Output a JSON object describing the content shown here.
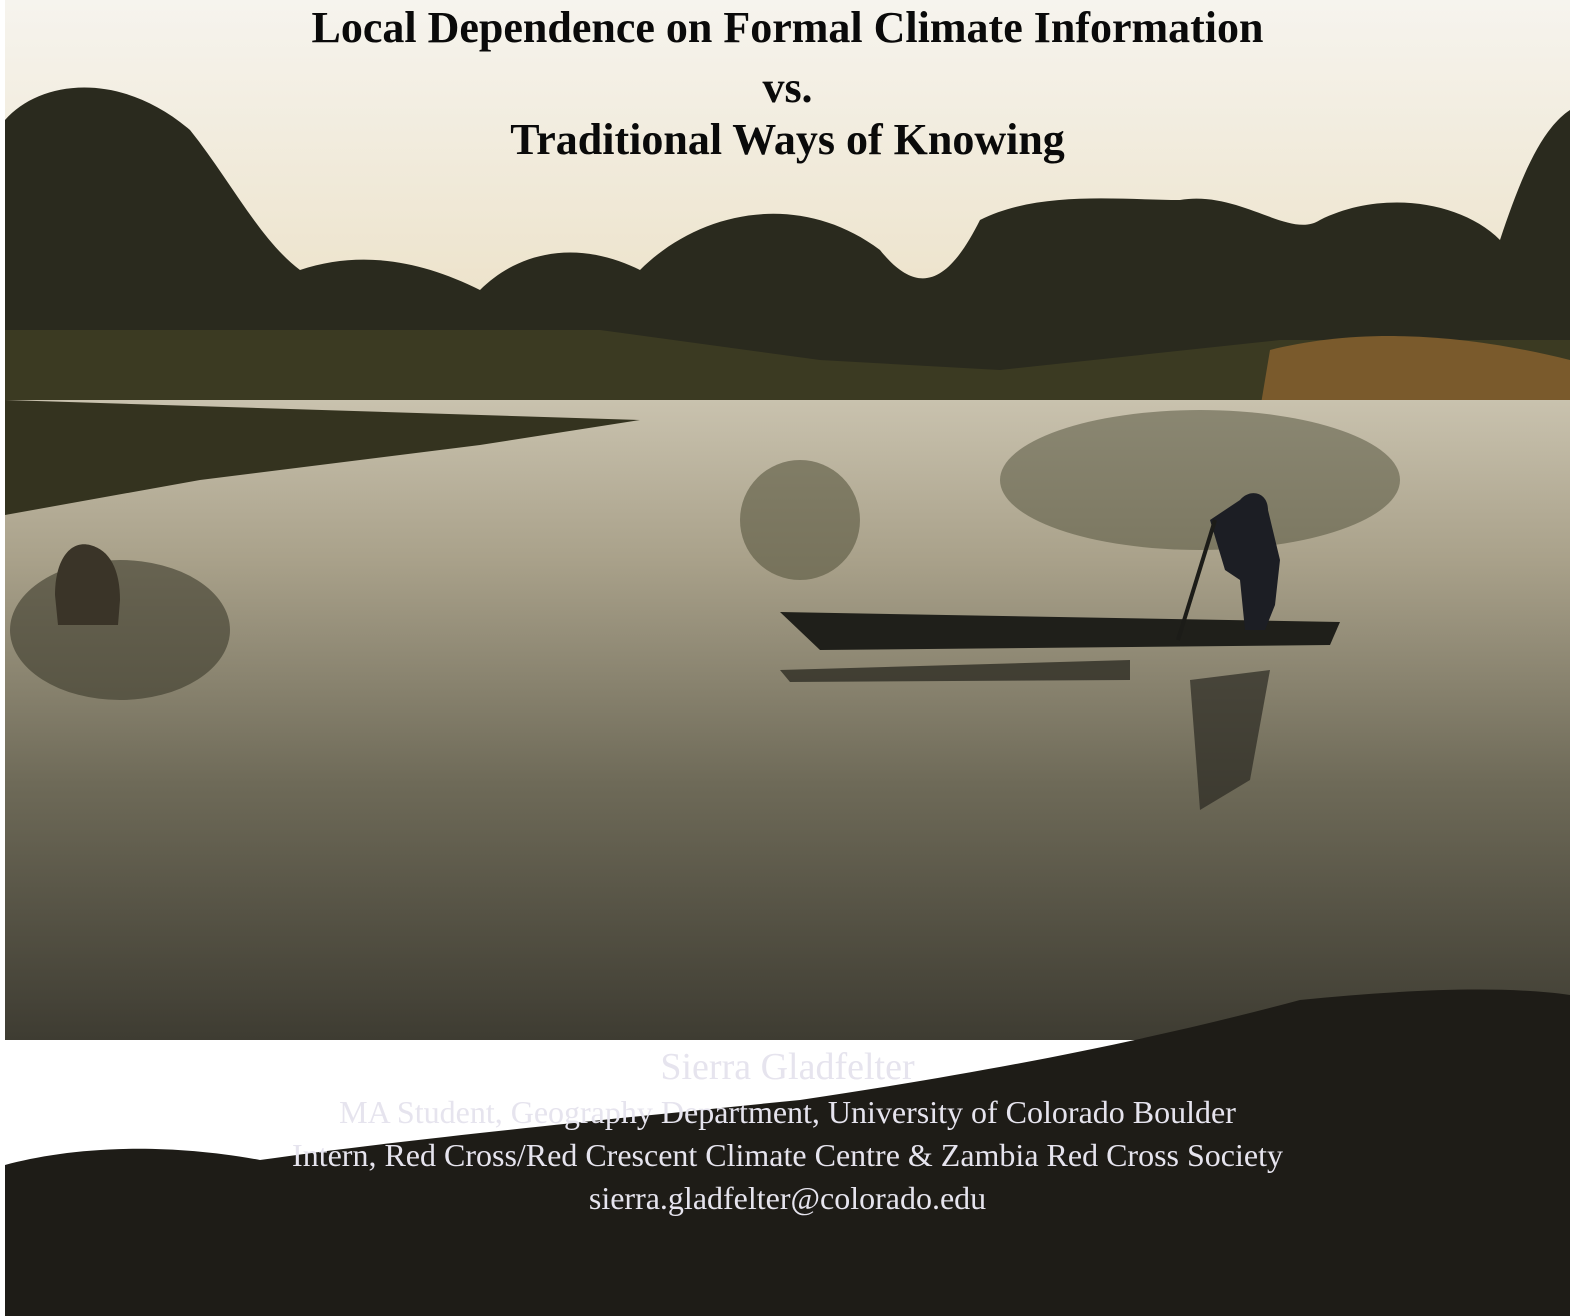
{
  "header": {
    "title_lines": [
      "Local Dependence on Formal Climate Information",
      "vs.",
      "Traditional Ways of Knowing"
    ]
  },
  "author": {
    "name": "Sierra Gladfelter",
    "affiliations": [
      "MA Student, Geography Department, University of Colorado Boulder",
      "Intern, Red Cross/Red Crescent Climate Centre & Zambia Red Cross Society"
    ],
    "email": "sierra.gladfelter@colorado.edu"
  }
}
